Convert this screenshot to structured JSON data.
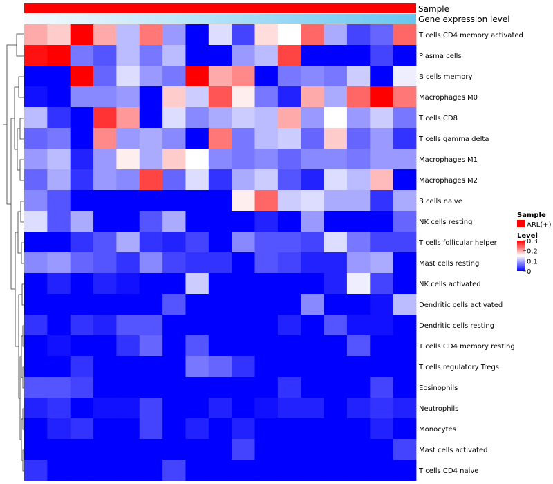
{
  "chart_data": {
    "type": "heatmap",
    "title": "",
    "annotation_tracks": [
      {
        "name": "Sample"
      },
      {
        "name": "Gene expression level"
      }
    ],
    "rows": [
      "T cells CD4 memory activated",
      "Plasma cells",
      "B cells memory",
      "Macrophages M0",
      "T cells CD8",
      "T cells gamma delta",
      "Macrophages M1",
      "Macrophages M2",
      "B cells naive",
      "NK cells resting",
      "T cells follicular helper",
      "Mast cells resting",
      "NK cells activated",
      "Dendritic cells activated",
      "Dendritic cells resting",
      "T cells CD4 memory resting",
      "T cells regulatory  Tregs",
      "Eosinophils",
      "Neutrophils",
      "Monocytes",
      "Mast cells activated",
      "T cells CD4 naive"
    ],
    "n_columns": 17,
    "values": [
      [
        0.2,
        0.18,
        0.3,
        0.2,
        0.11,
        0.23,
        0.09,
        0.0,
        0.13,
        0.04,
        0.17,
        0.15,
        0.24,
        0.1,
        0.04,
        0.06,
        0.24
      ],
      [
        0.29,
        0.3,
        0.07,
        0.05,
        0.11,
        0.07,
        0.11,
        0.0,
        0.0,
        0.09,
        0.11,
        0.26,
        0.0,
        0.0,
        0.0,
        0.04,
        0.0
      ],
      [
        0.0,
        0.0,
        0.3,
        0.06,
        0.13,
        0.09,
        0.07,
        0.3,
        0.2,
        0.22,
        0.0,
        0.07,
        0.08,
        0.07,
        0.12,
        0.0,
        0.14
      ],
      [
        0.01,
        0.0,
        0.08,
        0.08,
        0.09,
        0.0,
        0.18,
        0.12,
        0.25,
        0.16,
        0.07,
        0.02,
        0.2,
        0.1,
        0.24,
        0.3,
        0.23
      ],
      [
        0.11,
        0.03,
        0.0,
        0.27,
        0.21,
        0.0,
        0.13,
        0.08,
        0.1,
        0.12,
        0.11,
        0.2,
        0.09,
        0.15,
        0.09,
        0.12,
        0.07
      ],
      [
        0.06,
        0.07,
        0.0,
        0.22,
        0.09,
        0.1,
        0.08,
        0.0,
        0.23,
        0.07,
        0.11,
        0.12,
        0.06,
        0.18,
        0.06,
        0.09,
        0.03
      ],
      [
        0.09,
        0.11,
        0.02,
        0.09,
        0.16,
        0.1,
        0.18,
        0.15,
        0.08,
        0.07,
        0.08,
        0.06,
        0.08,
        0.08,
        0.07,
        0.09,
        0.09
      ],
      [
        0.06,
        0.1,
        0.03,
        0.09,
        0.08,
        0.26,
        0.06,
        0.13,
        0.03,
        0.1,
        0.12,
        0.05,
        0.02,
        0.13,
        0.11,
        0.19,
        0.0
      ],
      [
        0.08,
        0.05,
        0.0,
        0.0,
        0.0,
        0.0,
        0.0,
        0.0,
        0.0,
        0.16,
        0.24,
        0.12,
        0.13,
        0.1,
        0.1,
        0.03,
        0.1
      ],
      [
        0.13,
        0.05,
        0.1,
        0.0,
        0.0,
        0.05,
        0.1,
        0.0,
        0.0,
        0.0,
        0.02,
        0.0,
        0.09,
        0.0,
        0.0,
        0.0,
        0.06
      ],
      [
        0.0,
        0.0,
        0.03,
        0.05,
        0.1,
        0.03,
        0.02,
        0.04,
        0.0,
        0.08,
        0.05,
        0.05,
        0.04,
        0.13,
        0.07,
        0.04,
        0.04
      ],
      [
        0.08,
        0.09,
        0.06,
        0.05,
        0.03,
        0.08,
        0.04,
        0.03,
        0.03,
        0.0,
        0.05,
        0.04,
        0.02,
        0.02,
        0.09,
        0.1,
        0.0
      ],
      [
        0.0,
        0.02,
        0.0,
        0.02,
        0.01,
        0.0,
        0.0,
        0.12,
        0.0,
        0.0,
        0.0,
        0.0,
        0.0,
        0.02,
        0.14,
        0.04,
        0.0
      ],
      [
        0.0,
        0.0,
        0.0,
        0.0,
        0.0,
        0.0,
        0.05,
        0.0,
        0.0,
        0.0,
        0.0,
        0.0,
        0.08,
        0.0,
        0.0,
        0.01,
        0.11
      ],
      [
        0.03,
        0.0,
        0.03,
        0.02,
        0.05,
        0.05,
        0.0,
        0.0,
        0.0,
        0.0,
        0.0,
        0.02,
        0.0,
        0.05,
        0.01,
        0.01,
        0.0
      ],
      [
        0.0,
        0.01,
        0.0,
        0.0,
        0.03,
        0.06,
        0.0,
        0.05,
        0.0,
        0.0,
        0.0,
        0.0,
        0.0,
        0.0,
        0.05,
        0.0,
        0.0
      ],
      [
        0.0,
        0.0,
        0.03,
        0.0,
        0.0,
        0.0,
        0.0,
        0.07,
        0.06,
        0.03,
        0.0,
        0.0,
        0.0,
        0.0,
        0.0,
        0.0,
        0.0
      ],
      [
        0.05,
        0.05,
        0.04,
        0.0,
        0.0,
        0.0,
        0.0,
        0.0,
        0.0,
        0.0,
        0.0,
        0.03,
        0.0,
        0.0,
        0.0,
        0.04,
        0.0
      ],
      [
        0.02,
        0.03,
        0.0,
        0.01,
        0.01,
        0.04,
        0.0,
        0.0,
        0.02,
        0.0,
        0.01,
        0.02,
        0.02,
        0.0,
        0.02,
        0.03,
        0.02
      ],
      [
        0.0,
        0.02,
        0.03,
        0.0,
        0.0,
        0.04,
        0.0,
        0.02,
        0.0,
        0.02,
        0.0,
        0.0,
        0.0,
        0.0,
        0.0,
        0.02,
        0.0
      ],
      [
        0.0,
        0.0,
        0.0,
        0.0,
        0.0,
        0.0,
        0.0,
        0.0,
        0.0,
        0.04,
        0.0,
        0.0,
        0.0,
        0.0,
        0.0,
        0.0,
        0.04
      ],
      [
        0.03,
        0.0,
        0.0,
        0.0,
        0.0,
        0.0,
        0.04,
        0.0,
        0.0,
        0.0,
        0.0,
        0.0,
        0.0,
        0.0,
        0.0,
        0.0,
        0.0
      ]
    ],
    "value_range": [
      0,
      0.3
    ],
    "colors": {
      "low": "#0000ff",
      "mid": "#ffffff",
      "high": "#ff0000",
      "sample": "#ff0000",
      "level_low": "#f7fbff",
      "level_high": "#67c6f0"
    },
    "legend": {
      "sample_title": "Sample",
      "sample_entry": "ARL(+)",
      "level_title": "Level",
      "ticks": [
        {
          "value": 0.3,
          "label": "0.3"
        },
        {
          "value": 0.2,
          "label": "0.2"
        },
        {
          "value": 0.1,
          "label": "0.1"
        },
        {
          "value": 0,
          "label": "0"
        }
      ]
    },
    "dendrogram": "rows"
  }
}
